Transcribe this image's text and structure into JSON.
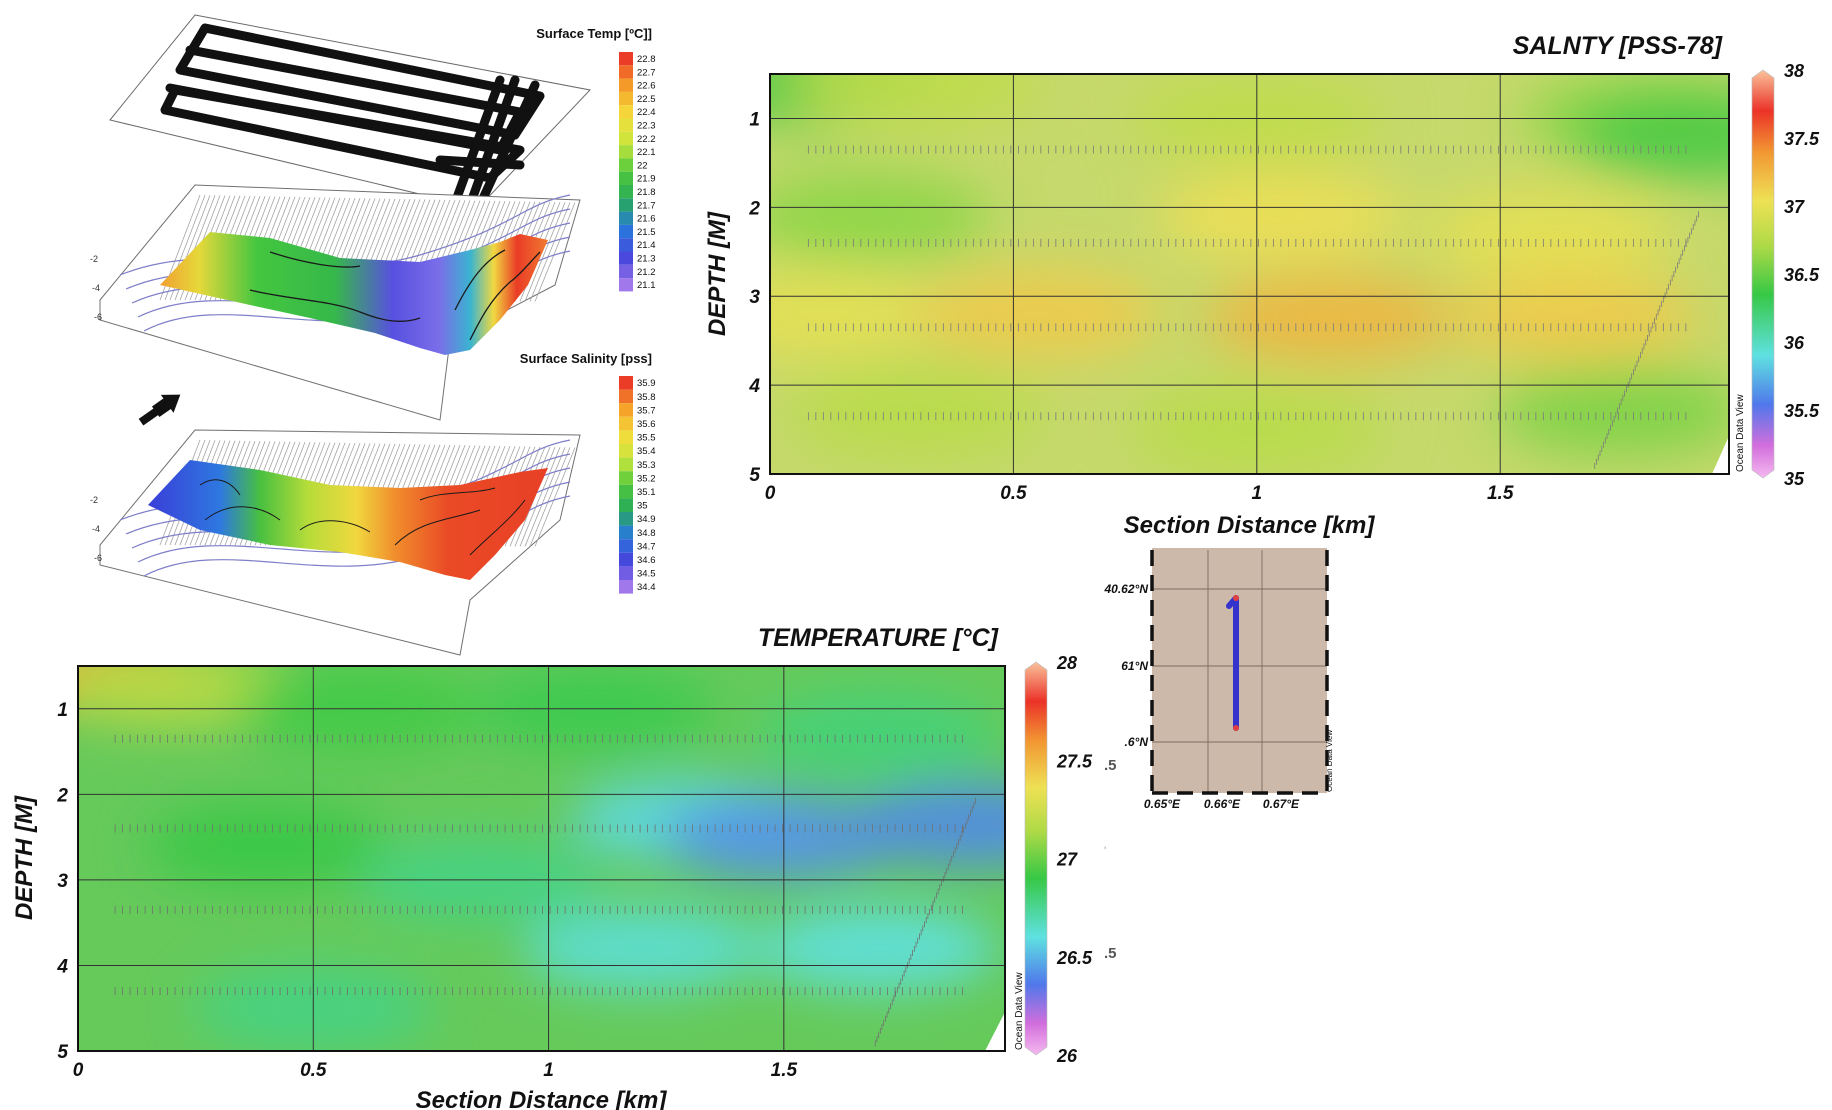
{
  "chart_data": [
    {
      "type": "heatmap",
      "title": "SALNTY [PSS-78]",
      "xlabel": "Section Distance [km]",
      "ylabel": "DEPTH [M]",
      "xlim": [
        0,
        1.97
      ],
      "ylim": [
        0.5,
        5
      ],
      "y_inverted": true,
      "x_ticks": [
        "0",
        "0.5",
        "1",
        "1.5"
      ],
      "y_ticks": [
        "1",
        "2",
        "3",
        "4",
        "5"
      ],
      "grid": true,
      "colorbar": {
        "min": 35,
        "max": 38,
        "labels": [
          "35",
          "35.5",
          "36",
          "36.5",
          "37",
          "37.5",
          "38"
        ]
      },
      "watermark": "Ocean Data View",
      "features": [
        {
          "x": 0.1,
          "y": 0.6,
          "value": 36.4
        },
        {
          "x": 0.3,
          "y": 0.6,
          "value": 36.8
        },
        {
          "x": 1.0,
          "y": 1.0,
          "value": 36.8
        },
        {
          "x": 1.8,
          "y": 1.0,
          "value": 36.6
        },
        {
          "x": 1.9,
          "y": 1.2,
          "value": 36.4
        },
        {
          "x": 0.2,
          "y": 2.1,
          "value": 36.6
        },
        {
          "x": 1.05,
          "y": 2.1,
          "value": 37.05
        },
        {
          "x": 1.6,
          "y": 2.3,
          "value": 37.0
        },
        {
          "x": 0.1,
          "y": 3.2,
          "value": 37.0
        },
        {
          "x": 0.55,
          "y": 3.2,
          "value": 37.15
        },
        {
          "x": 1.15,
          "y": 3.25,
          "value": 37.25
        },
        {
          "x": 1.65,
          "y": 3.25,
          "value": 37.15
        },
        {
          "x": 0.3,
          "y": 4.3,
          "value": 36.75
        },
        {
          "x": 1.0,
          "y": 4.5,
          "value": 36.75
        },
        {
          "x": 1.75,
          "y": 4.3,
          "value": 36.55
        }
      ]
    },
    {
      "type": "heatmap",
      "title": "TEMPERATURE [°C]",
      "xlabel": "Section Distance [km]",
      "ylabel": "DEPTH [M]",
      "xlim": [
        0,
        1.97
      ],
      "ylim": [
        0.5,
        5
      ],
      "y_inverted": true,
      "x_ticks": [
        "0",
        "0.5",
        "1",
        "1.5"
      ],
      "y_ticks": [
        "1",
        "2",
        "3",
        "4",
        "5"
      ],
      "grid": true,
      "colorbar": {
        "min": 26,
        "max": 28,
        "labels": [
          "26",
          "26.5",
          "27",
          "27.5",
          "28"
        ]
      },
      "watermark": "Ocean Data View",
      "features": [
        {
          "x": 0.05,
          "y": 0.6,
          "value": 27.55
        },
        {
          "x": 0.2,
          "y": 0.75,
          "value": 27.15
        },
        {
          "x": 0.6,
          "y": 1.0,
          "value": 26.92
        },
        {
          "x": 1.1,
          "y": 1.0,
          "value": 26.88
        },
        {
          "x": 1.7,
          "y": 1.3,
          "value": 26.8
        },
        {
          "x": 0.4,
          "y": 2.6,
          "value": 26.9
        },
        {
          "x": 0.85,
          "y": 3.0,
          "value": 26.78
        },
        {
          "x": 1.3,
          "y": 2.3,
          "value": 26.58
        },
        {
          "x": 1.5,
          "y": 2.5,
          "value": 26.42
        },
        {
          "x": 1.9,
          "y": 2.35,
          "value": 26.4
        },
        {
          "x": 1.2,
          "y": 3.8,
          "value": 26.62
        },
        {
          "x": 1.7,
          "y": 3.8,
          "value": 26.6
        },
        {
          "x": 0.5,
          "y": 4.5,
          "value": 26.78
        }
      ]
    },
    {
      "type": "map",
      "x_ticks": [
        "0.65°E",
        "0.66°E",
        "0.67°E"
      ],
      "y_ticks": [
        "40.62°N",
        "61°N",
        ".6°N"
      ],
      "watermark": "Ocean Data View",
      "track": [
        [
          0.662,
          40.621
        ],
        [
          0.662,
          40.599
        ]
      ]
    },
    {
      "type": "3d-surface",
      "colorbar_temp": {
        "title": "Surface Temp [ºC]]",
        "labels": [
          "22.8",
          "22.7",
          "22.6",
          "22.5",
          "22.4",
          "22.3",
          "22.2",
          "22.1",
          "22",
          "21.9",
          "21.8",
          "21.7",
          "21.6",
          "21.5",
          "21.4",
          "21.3",
          "21.2",
          "21.1"
        ]
      },
      "colorbar_sal": {
        "title": "Surface Salinity [pss]",
        "labels": [
          "35.9",
          "35.8",
          "35.7",
          "35.6",
          "35.5",
          "35.4",
          "35.3",
          "35.2",
          "35.1",
          "35",
          "34.9",
          "34.8",
          "34.7",
          "34.6",
          "34.5",
          "34.4"
        ]
      },
      "depth_ticks": [
        "-2",
        "-4",
        "-6"
      ]
    }
  ],
  "stray_text": {
    "a": ".5",
    "b": ".5",
    "c": "'"
  },
  "colors": {
    "background": "#ffffff",
    "track": "#111111",
    "map_background": "#cdb9a9",
    "map_track": "#3434cc"
  }
}
